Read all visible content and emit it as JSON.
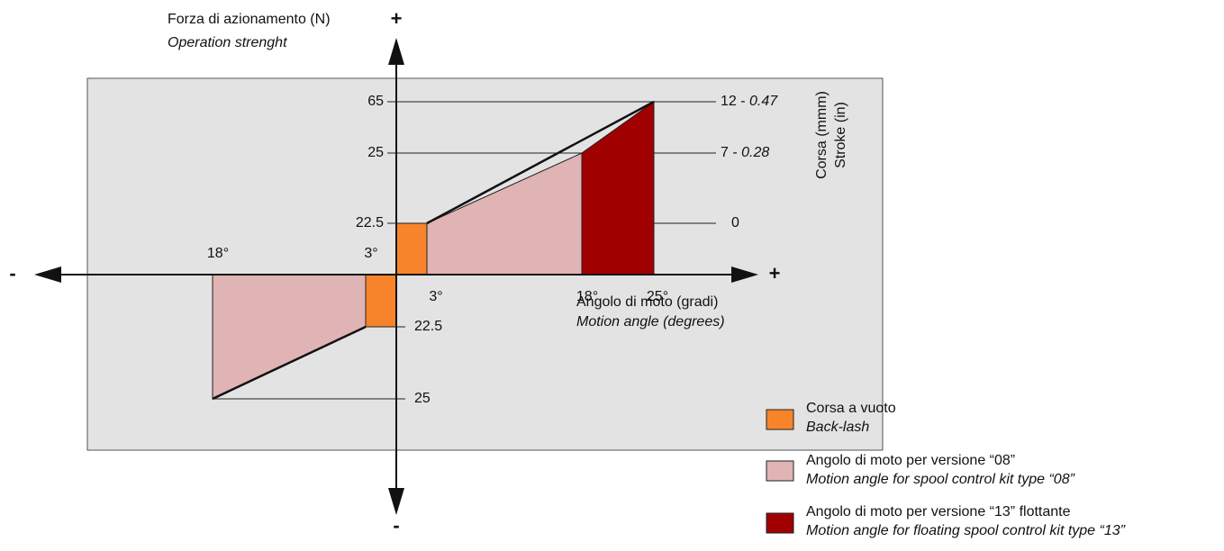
{
  "y_axis": {
    "label": "Forza di azionamento (N)",
    "label_en": "Operation strenght",
    "positive": "+",
    "negative": "-",
    "ticks_upper": [
      "65",
      "25",
      "22.5"
    ],
    "ticks_lower": [
      "22.5",
      "25"
    ]
  },
  "x_axis": {
    "label": "Angolo di moto (gradi)",
    "label_en": "Motion angle (degrees)",
    "positive": "+",
    "negative": "-",
    "ticks_right": [
      "3°",
      "18°",
      "25°"
    ],
    "ticks_left": [
      "18°",
      "3°"
    ]
  },
  "stroke_axis": {
    "label": "Corsa (mmm)",
    "label_en": "Stroke (in)",
    "ticks": [
      {
        "mm": "12 -",
        "in": "0.47"
      },
      {
        "mm": "7 -",
        "in": "0.28"
      },
      {
        "mm": "0"
      }
    ]
  },
  "legend": [
    {
      "label": "Corsa a vuoto",
      "label_en": "Back-lash"
    },
    {
      "label": "Angolo di moto per versione “08”",
      "label_en": "Motion angle for spool control kit type “08”"
    },
    {
      "label": "Angolo di moto per versione “13” flottante",
      "label_en": "Motion angle for floating spool control kit type “13”"
    }
  ]
}
